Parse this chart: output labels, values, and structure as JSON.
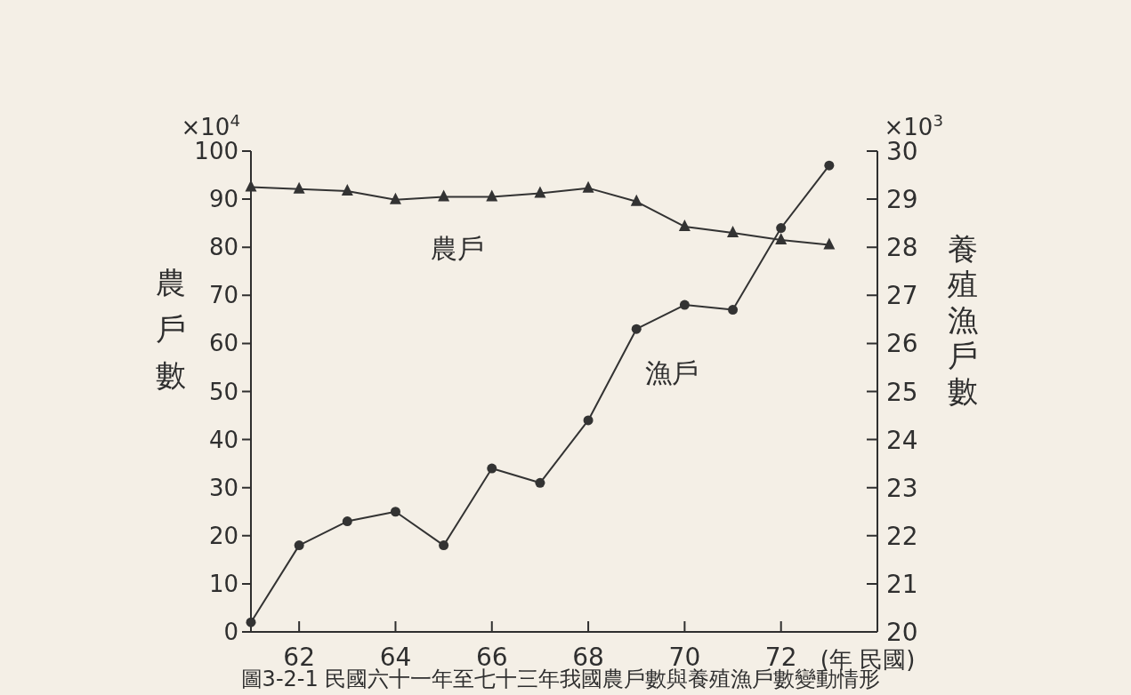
{
  "chart_data": {
    "type": "line",
    "title": "圖3-2-1 民國六十一年至七十三年我國農戶數與養殖漁戶數變動情形",
    "x": [
      61,
      62,
      63,
      64,
      65,
      66,
      67,
      68,
      69,
      70,
      71,
      72,
      73
    ],
    "series": [
      {
        "name": "農戶",
        "color": "#333333",
        "marker": "triangle",
        "values": [
          92.5,
          92.1,
          91.7,
          89.9,
          90.5,
          90.5,
          91.2,
          92.3,
          89.5,
          84.3,
          83.0,
          81.5,
          80.5
        ]
      },
      {
        "name": "漁戶",
        "color": "#333333",
        "marker": "circle",
        "axis": "y2",
        "values": [
          20.2,
          21.8,
          22.3,
          22.5,
          21.8,
          23.4,
          23.1,
          24.4,
          26.3,
          26.8,
          26.7,
          28.4,
          29.7
        ]
      }
    ],
    "xlabel": "(年 民國)",
    "ylabel": "農戶數",
    "y2label": "養殖漁戶數",
    "annotations": [
      "×10$^{4}$",
      "×10$^{3}$"
    ],
    "xlim": [
      61,
      74
    ],
    "ylim": [
      0,
      100
    ],
    "y2lim": [
      20,
      30
    ],
    "xticks": [
      62,
      64,
      66,
      68,
      70,
      72
    ],
    "yticks": [
      0,
      10,
      20,
      30,
      40,
      50,
      60,
      70,
      80,
      90,
      100
    ],
    "y2ticks": [
      20,
      21,
      22,
      23,
      24,
      25,
      26,
      27,
      28,
      29,
      30
    ],
    "grid": false,
    "legend": false,
    "line_style": "solid"
  }
}
